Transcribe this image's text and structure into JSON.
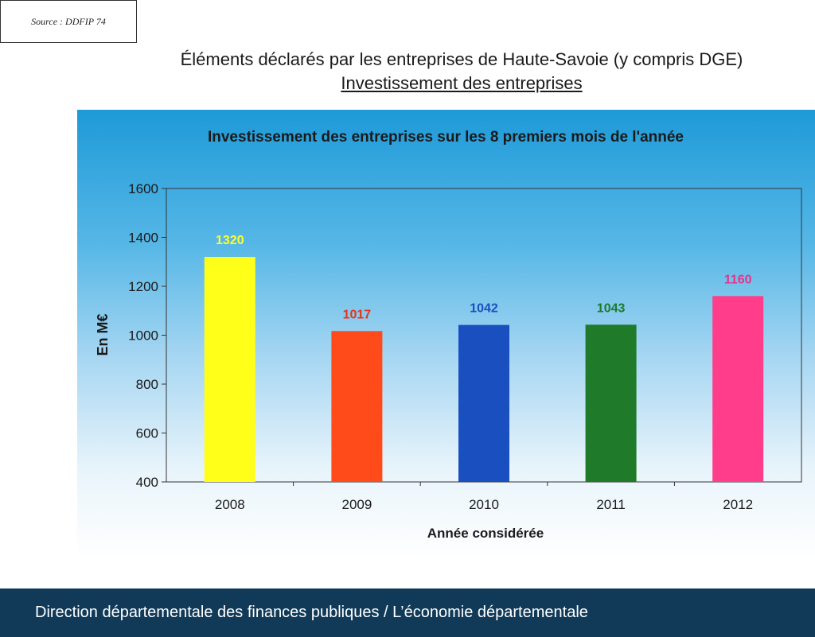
{
  "source": "Source : DDFIP 74",
  "header": {
    "title": "Éléments déclarés par les entreprises de Haute-Savoie (y compris DGE)",
    "subtitle": "Investissement des entreprises"
  },
  "footer": {
    "text": "Direction départementale des finances publiques / L’économie départementale"
  },
  "chart_data": {
    "type": "bar",
    "title": "Investissement des entreprises sur les 8 premiers mois de l'année",
    "xlabel": "Année considérée",
    "ylabel": "En M€",
    "categories": [
      "2008",
      "2009",
      "2010",
      "2011",
      "2012"
    ],
    "values": [
      1320,
      1017,
      1042,
      1043,
      1160
    ],
    "data_labels": [
      "1320",
      "1017",
      "1042",
      "1043",
      "1160"
    ],
    "bar_colors": [
      "#ffff1a",
      "#ff4a1a",
      "#1a4fbf",
      "#1f7a2a",
      "#ff3d8a"
    ],
    "label_colors": [
      "#ffff33",
      "#e8321a",
      "#1a4fbf",
      "#1f7a2a",
      "#e8328a"
    ],
    "ylim": [
      400,
      1600
    ],
    "yticks": [
      400,
      600,
      800,
      1000,
      1200,
      1400,
      1600
    ],
    "grid": false,
    "legend": "none"
  }
}
